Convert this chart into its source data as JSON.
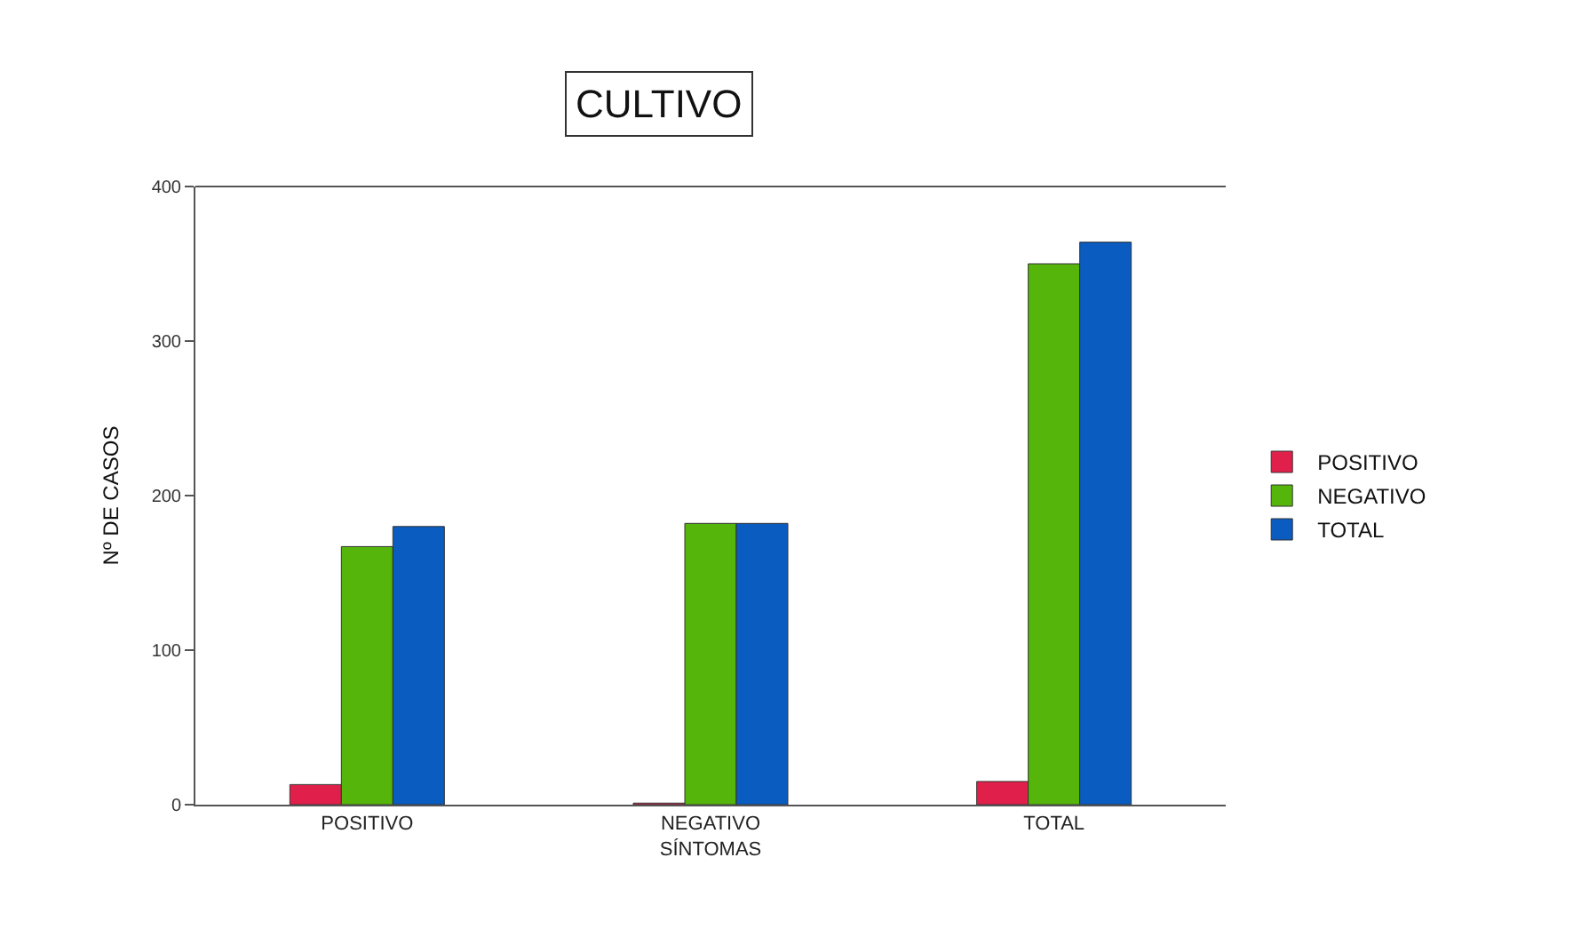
{
  "chart_data": {
    "type": "bar",
    "title": "CULTIVO",
    "ylabel": "Nº DE CASOS",
    "categories": [
      "POSITIVO",
      "NEGATIVO\nSÍNTOMAS",
      "TOTAL"
    ],
    "series": [
      {
        "name": "POSITIVO",
        "color": "#e0204a",
        "values": [
          13,
          1,
          15
        ]
      },
      {
        "name": "NEGATIVO",
        "color": "#55b50a",
        "values": [
          167,
          182,
          350
        ]
      },
      {
        "name": "TOTAL",
        "color": "#0a5cc0",
        "values": [
          180,
          182,
          364
        ]
      }
    ],
    "ylim": [
      0,
      400
    ],
    "yticks": [
      0,
      100,
      200,
      300,
      400
    ],
    "legend": "right"
  }
}
